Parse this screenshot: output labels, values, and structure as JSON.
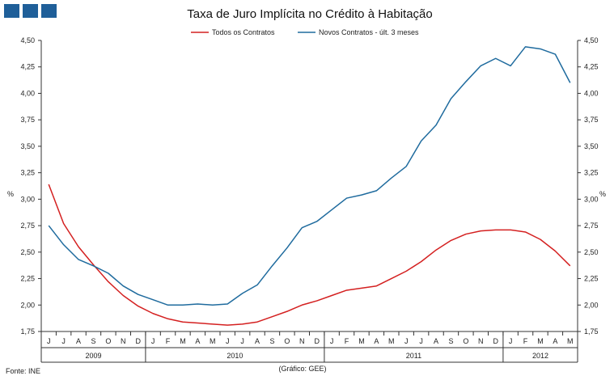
{
  "header": {
    "logo_color": "#1f5f99"
  },
  "chart_data": {
    "type": "line",
    "title": "Taxa de Juro Implícita no Crédito à Habitação",
    "ylabel_left": "%",
    "ylabel_right": "%",
    "ylim": [
      1.75,
      4.5
    ],
    "yticks": [
      "1,75",
      "2,00",
      "2,25",
      "2,50",
      "2,75",
      "3,00",
      "3,25",
      "3,50",
      "3,75",
      "4,00",
      "4,25",
      "4,50"
    ],
    "ytick_values": [
      1.75,
      2.0,
      2.25,
      2.5,
      2.75,
      3.0,
      3.25,
      3.5,
      3.75,
      4.0,
      4.25,
      4.5
    ],
    "categories": [
      "J",
      "J",
      "A",
      "S",
      "O",
      "N",
      "D",
      "J",
      "F",
      "M",
      "A",
      "M",
      "J",
      "J",
      "A",
      "S",
      "O",
      "N",
      "D",
      "J",
      "F",
      "M",
      "A",
      "M",
      "J",
      "J",
      "A",
      "S",
      "O",
      "N",
      "D",
      "J",
      "F",
      "M",
      "A",
      "M"
    ],
    "year_groups": [
      {
        "label": "2009",
        "start": 0,
        "count": 7
      },
      {
        "label": "2010",
        "start": 7,
        "count": 12
      },
      {
        "label": "2011",
        "start": 19,
        "count": 12
      },
      {
        "label": "2012",
        "start": 31,
        "count": 5
      }
    ],
    "series": [
      {
        "name": "Todos os Contratos",
        "color": "#d42020",
        "values": [
          3.14,
          2.77,
          2.55,
          2.38,
          2.22,
          2.09,
          1.99,
          1.92,
          1.87,
          1.84,
          1.83,
          1.82,
          1.81,
          1.82,
          1.84,
          1.89,
          1.94,
          2.0,
          2.04,
          2.09,
          2.14,
          2.16,
          2.18,
          2.25,
          2.32,
          2.41,
          2.52,
          2.61,
          2.67,
          2.7,
          2.71,
          2.71,
          2.69,
          2.62,
          2.51,
          2.37
        ]
      },
      {
        "name": "Novos Contratos - últ. 3 meses",
        "color": "#1f6b9e",
        "values": [
          2.75,
          2.57,
          2.43,
          2.37,
          2.3,
          2.18,
          2.1,
          2.05,
          2.0,
          2.0,
          2.01,
          2.0,
          2.01,
          2.11,
          2.19,
          2.37,
          2.54,
          2.73,
          2.79,
          2.9,
          3.01,
          3.04,
          3.08,
          3.2,
          3.31,
          3.55,
          3.7,
          3.95,
          4.11,
          4.26,
          4.33,
          4.26,
          4.44,
          4.42,
          4.37,
          4.1
        ]
      }
    ],
    "footnote_left": "Fonte: INE",
    "footnote_center": "(Gráfico: GEE)"
  }
}
